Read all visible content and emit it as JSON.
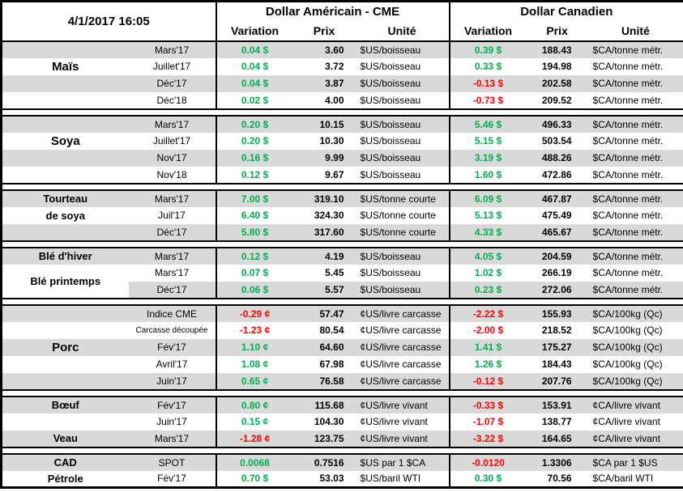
{
  "meta": {
    "timestamp": "4/1/2017 16:05"
  },
  "header": {
    "us_group": "Dollar Américain - CME",
    "ca_group": "Dollar Canadien",
    "variation": "Variation",
    "prix": "Prix",
    "unite": "Unité"
  },
  "colors": {
    "positive": "#00B050",
    "negative": "#FF0000",
    "row_band": "#D9D9D9",
    "border": "#000000"
  },
  "sections": [
    {
      "name": "mais",
      "rows": [
        {
          "label": "",
          "contract": "Mars'17",
          "us_var": "0.04 $",
          "us_prix": "3.60",
          "us_unit": "$US/boisseau",
          "ca_var": "0.39 $",
          "ca_prix": "188.43",
          "ca_unit": "$CA/tonne métr."
        },
        {
          "label": "Maïs",
          "label_big": true,
          "contract": "Juillet'17",
          "us_var": "0.04 $",
          "us_prix": "3.72",
          "us_unit": "$US/boisseau",
          "ca_var": "0.33 $",
          "ca_prix": "194.98",
          "ca_unit": "$CA/tonne métr."
        },
        {
          "label": "",
          "contract": "Déc'17",
          "us_var": "0.04 $",
          "us_prix": "3.87",
          "us_unit": "$US/boisseau",
          "ca_var": "-0.13 $",
          "ca_prix": "202.58",
          "ca_unit": "$CA/tonne métr."
        },
        {
          "label": "",
          "contract": "Déc'18",
          "us_var": "0.02 $",
          "us_prix": "4.00",
          "us_unit": "$US/boisseau",
          "ca_var": "-0.73 $",
          "ca_prix": "209.52",
          "ca_unit": "$CA/tonne métr."
        }
      ]
    },
    {
      "name": "soya",
      "rows": [
        {
          "label": "",
          "contract": "Mars'17",
          "us_var": "0.20 $",
          "us_prix": "10.15",
          "us_unit": "$US/boisseau",
          "ca_var": "5.46 $",
          "ca_prix": "496.33",
          "ca_unit": "$CA/tonne métr."
        },
        {
          "label": "Soya",
          "label_big": true,
          "contract": "Juillet'17",
          "us_var": "0.20 $",
          "us_prix": "10.30",
          "us_unit": "$US/boisseau",
          "ca_var": "5.15 $",
          "ca_prix": "503.54",
          "ca_unit": "$CA/tonne métr."
        },
        {
          "label": "",
          "contract": "Nov'17",
          "us_var": "0.16 $",
          "us_prix": "9.99",
          "us_unit": "$US/boisseau",
          "ca_var": "3.19 $",
          "ca_prix": "488.26",
          "ca_unit": "$CA/tonne métr."
        },
        {
          "label": "",
          "contract": "Nov'18",
          "us_var": "0.12 $",
          "us_prix": "9.67",
          "us_unit": "$US/boisseau",
          "ca_var": "1.60 $",
          "ca_prix": "472.86",
          "ca_unit": "$CA/tonne métr."
        }
      ]
    },
    {
      "name": "tourteau-de-soya",
      "rows": [
        {
          "label": "Tourteau",
          "contract": "Mars'17",
          "us_var": "7.00 $",
          "us_prix": "319.10",
          "us_unit": "$US/tonne courte",
          "ca_var": "6.09 $",
          "ca_prix": "467.87",
          "ca_unit": "$CA/tonne métr."
        },
        {
          "label": "de soya",
          "contract": "Juil'17",
          "us_var": "6.40 $",
          "us_prix": "324.30",
          "us_unit": "$US/tonne courte",
          "ca_var": "5.13 $",
          "ca_prix": "475.49",
          "ca_unit": "$CA/tonne métr."
        },
        {
          "label": "",
          "contract": "Déc'17",
          "us_var": "5.80 $",
          "us_prix": "317.60",
          "us_unit": "$US/tonne courte",
          "ca_var": "4.33 $",
          "ca_prix": "465.67",
          "ca_unit": "$CA/tonne métr."
        }
      ]
    },
    {
      "name": "ble",
      "rows": [
        {
          "label": "Blé d'hiver",
          "contract": "Mars'17",
          "us_var": "0.12 $",
          "us_prix": "4.19",
          "us_unit": "$US/boisseau",
          "ca_var": "4.05 $",
          "ca_prix": "204.59",
          "ca_unit": "$CA/tonne métr."
        },
        {
          "label": "Blé printemps",
          "label_rowspan": 2,
          "contract": "Mars'17",
          "us_var": "0.07 $",
          "us_prix": "5.45",
          "us_unit": "$US/boisseau",
          "ca_var": "1.02 $",
          "ca_prix": "266.19",
          "ca_unit": "$CA/tonne métr."
        },
        {
          "label_covered": true,
          "contract": "Déc'17",
          "us_var": "0.06 $",
          "us_prix": "5.57",
          "us_unit": "$US/boisseau",
          "ca_var": "0.23 $",
          "ca_prix": "272.06",
          "ca_unit": "$CA/tonne métr."
        }
      ]
    },
    {
      "name": "porc",
      "rows": [
        {
          "label": "",
          "contract": "Indice CME",
          "us_var": "-0.29 ¢",
          "us_prix": "57.47",
          "us_unit": "¢US/livre carcasse",
          "ca_var": "-2.22 $",
          "ca_prix": "155.93",
          "ca_unit": "$CA/100kg (Qc)"
        },
        {
          "label": "",
          "contract": "Carcasse découpée",
          "contract_small": true,
          "us_var": "-1.23 ¢",
          "us_prix": "80.54",
          "us_unit": "¢US/livre carcasse",
          "ca_var": "-2.00 $",
          "ca_prix": "218.52",
          "ca_unit": "$CA/100kg (Qc)"
        },
        {
          "label": "Porc",
          "label_big": true,
          "contract": "Fév'17",
          "us_var": "1.10 ¢",
          "us_prix": "64.60",
          "us_unit": "¢US/livre carcasse",
          "ca_var": "1.41 $",
          "ca_prix": "175.27",
          "ca_unit": "$CA/100kg (Qc)"
        },
        {
          "label": "",
          "contract": "Avril'17",
          "us_var": "1.08 ¢",
          "us_prix": "67.98",
          "us_unit": "¢US/livre carcasse",
          "ca_var": "1.26 $",
          "ca_prix": "184.43",
          "ca_unit": "$CA/100kg (Qc)"
        },
        {
          "label": "",
          "contract": "Juin'17",
          "us_var": "0.65 ¢",
          "us_prix": "76.58",
          "us_unit": "¢US/livre carcasse",
          "ca_var": "-0.12 $",
          "ca_prix": "207.76",
          "ca_unit": "$CA/100kg (Qc)"
        }
      ]
    },
    {
      "name": "boeuf-veau",
      "rows": [
        {
          "label": "Bœuf",
          "contract": "Fév'17",
          "us_var": "0.80 ¢",
          "us_prix": "115.68",
          "us_unit": "¢US/livre vivant",
          "ca_var": "-0.33 $",
          "ca_prix": "153.91",
          "ca_unit": "¢CA/livre vivant"
        },
        {
          "label": "",
          "contract": "Juin'17",
          "us_var": "0.15 ¢",
          "us_prix": "104.30",
          "us_unit": "¢US/livre vivant",
          "ca_var": "-1.07 $",
          "ca_prix": "138.77",
          "ca_unit": "¢CA/livre vivant"
        },
        {
          "label": "Veau",
          "contract": "Mars'17",
          "us_var": "-1.28 ¢",
          "us_prix": "123.75",
          "us_unit": "¢US/livre vivant",
          "ca_var": "-3.22 $",
          "ca_prix": "164.65",
          "ca_unit": "¢CA/livre vivant"
        }
      ]
    },
    {
      "name": "cad-petrole",
      "rows": [
        {
          "label": "CAD",
          "contract": "SPOT",
          "us_var": "0.0068",
          "us_prix": "0.7516",
          "us_unit": "$US par 1 $CA",
          "ca_var": "-0.0120",
          "ca_prix": "1.3306",
          "ca_unit": "$CA par 1 $US"
        },
        {
          "label": "Pétrole",
          "contract": "Fév'17",
          "us_var": "0.70 $",
          "us_prix": "53.03",
          "us_unit": "$US/baril WTI",
          "ca_var": "0.30 $",
          "ca_prix": "70.56",
          "ca_unit": "$CA/baril WTI"
        }
      ]
    }
  ]
}
